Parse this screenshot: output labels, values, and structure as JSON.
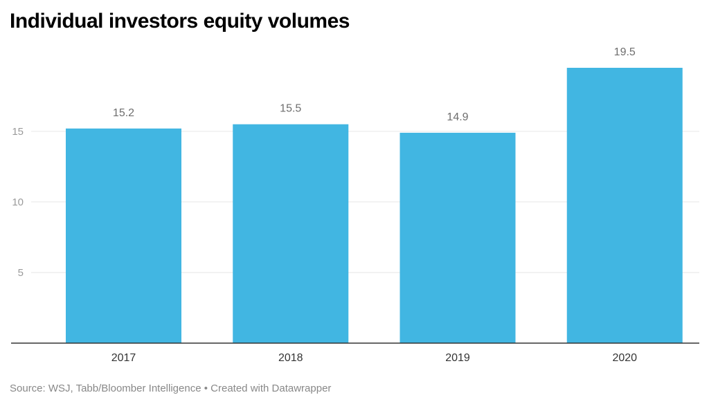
{
  "colors": {
    "bar": "#41b6e2",
    "grid": "#e6e6e6",
    "axis": "#333333"
  },
  "chart_data": {
    "type": "bar",
    "title": "Individual investors equity volumes",
    "categories": [
      "2017",
      "2018",
      "2019",
      "2020"
    ],
    "values": [
      15.2,
      15.5,
      14.9,
      19.5
    ],
    "data_labels": [
      "15.2",
      "15.5",
      "14.9",
      "19.5"
    ],
    "yticks": [
      5,
      10,
      15
    ],
    "ytick_labels": [
      "5",
      "10",
      "15"
    ],
    "ylim": [
      0,
      19.5
    ],
    "grid": true,
    "xlabel": "",
    "ylabel": ""
  },
  "footer": {
    "source": "Source: WSJ, Tabb/Bloomber Intelligence",
    "separator": "•",
    "credit": "Created with Datawrapper"
  }
}
